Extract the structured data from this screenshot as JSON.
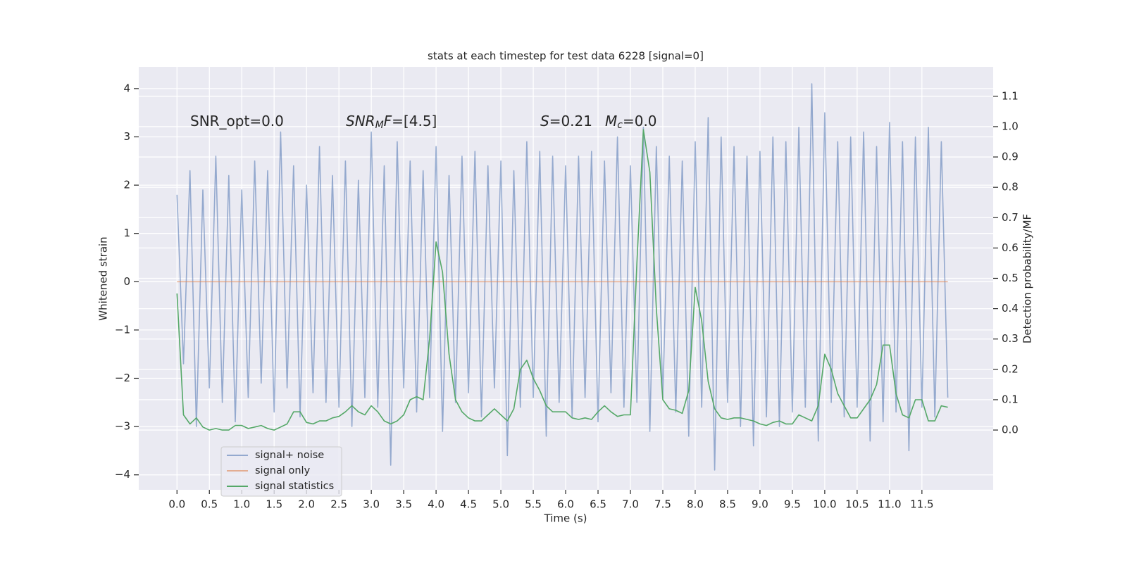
{
  "chart_data": {
    "type": "line",
    "title": "stats at each timestep for test data 6228 [signal=0]",
    "xlabel": "Time (s)",
    "ylabel": "Whitened strain",
    "y2label": "Detection probability/MF",
    "grid": true,
    "legend": "lower left",
    "xlim": [
      -0.59,
      12.6
    ],
    "ylim": [
      -4.31,
      4.45
    ],
    "y2lim": [
      -0.197,
      1.197
    ],
    "xticks": [
      {
        "value": 0,
        "label": "0.0"
      },
      {
        "value": 0.5,
        "label": "0.5"
      },
      {
        "value": 1,
        "label": "1.0"
      },
      {
        "value": 1.5,
        "label": "1.5"
      },
      {
        "value": 2,
        "label": "2.0"
      },
      {
        "value": 2.5,
        "label": "2.5"
      },
      {
        "value": 3,
        "label": "3.0"
      },
      {
        "value": 3.5,
        "label": "3.5"
      },
      {
        "value": 4,
        "label": "4.0"
      },
      {
        "value": 4.5,
        "label": "4.5"
      },
      {
        "value": 5,
        "label": "5.0"
      },
      {
        "value": 5.5,
        "label": "5.5"
      },
      {
        "value": 6,
        "label": "6.0"
      },
      {
        "value": 6.5,
        "label": "6.5"
      },
      {
        "value": 7,
        "label": "7.0"
      },
      {
        "value": 7.5,
        "label": "7.5"
      },
      {
        "value": 8,
        "label": "8.0"
      },
      {
        "value": 8.5,
        "label": "8.5"
      },
      {
        "value": 9,
        "label": "9.0"
      },
      {
        "value": 9.5,
        "label": "9.5"
      },
      {
        "value": 10,
        "label": "10.0"
      },
      {
        "value": 10.5,
        "label": "10.5"
      },
      {
        "value": 11,
        "label": "11.0"
      },
      {
        "value": 11.5,
        "label": "11.5"
      }
    ],
    "yticks": [
      {
        "value": -4,
        "label": "−4"
      },
      {
        "value": -3,
        "label": "−3"
      },
      {
        "value": -2,
        "label": "−2"
      },
      {
        "value": -1,
        "label": "−1"
      },
      0,
      1,
      2,
      3,
      4
    ],
    "y2ticks": [
      {
        "value": 0,
        "label": "0.0"
      },
      {
        "value": 0.1,
        "label": "0.1"
      },
      {
        "value": 0.2,
        "label": "0.2"
      },
      {
        "value": 0.3,
        "label": "0.3"
      },
      {
        "value": 0.4,
        "label": "0.4"
      },
      {
        "value": 0.5,
        "label": "0.5"
      },
      {
        "value": 0.6,
        "label": "0.6"
      },
      {
        "value": 0.7,
        "label": "0.7"
      },
      {
        "value": 0.8,
        "label": "0.8"
      },
      {
        "value": 0.9,
        "label": "0.9"
      },
      {
        "value": 1,
        "label": "1.0"
      },
      {
        "value": 1.1,
        "label": "1.1"
      }
    ],
    "annotations": [
      [
        {
          "t": "SNR_opt=0.0"
        }
      ],
      [
        {
          "t": "SNR",
          "italic": true
        },
        {
          "t": "M",
          "italic": true,
          "sub": true
        },
        {
          "t": "F",
          "italic": true
        },
        {
          "t": "=[4.5]"
        }
      ],
      [
        {
          "t": "S",
          "italic": true
        },
        {
          "t": "=0.21"
        }
      ],
      [
        {
          "t": "M",
          "italic": true
        },
        {
          "t": "c",
          "italic": true,
          "sub": true
        },
        {
          "t": "=0.0"
        }
      ]
    ],
    "x": [
      0.0,
      0.1,
      0.2,
      0.3,
      0.4,
      0.5,
      0.6,
      0.7,
      0.8,
      0.9,
      1.0,
      1.1,
      1.2,
      1.3,
      1.4,
      1.5,
      1.6,
      1.7,
      1.8,
      1.9,
      2.0,
      2.1,
      2.2,
      2.3,
      2.4,
      2.5,
      2.6,
      2.7,
      2.8,
      2.9,
      3.0,
      3.1,
      3.2,
      3.3,
      3.4,
      3.5,
      3.6,
      3.7,
      3.8,
      3.9,
      4.0,
      4.1,
      4.2,
      4.3,
      4.4,
      4.5,
      4.6,
      4.7,
      4.8,
      4.9,
      5.0,
      5.1,
      5.2,
      5.3,
      5.4,
      5.5,
      5.6,
      5.7,
      5.8,
      5.9,
      6.0,
      6.1,
      6.2,
      6.3,
      6.4,
      6.5,
      6.6,
      6.7,
      6.8,
      6.9,
      7.0,
      7.1,
      7.2,
      7.3,
      7.4,
      7.5,
      7.6,
      7.7,
      7.8,
      7.9,
      8.0,
      8.1,
      8.2,
      8.3,
      8.4,
      8.5,
      8.6,
      8.7,
      8.8,
      8.9,
      9.0,
      9.1,
      9.2,
      9.3,
      9.4,
      9.5,
      9.6,
      9.7,
      9.8,
      9.9,
      10.0,
      10.1,
      10.2,
      10.3,
      10.4,
      10.5,
      10.6,
      10.7,
      10.8,
      10.9,
      11.0,
      11.1,
      11.2,
      11.3,
      11.4,
      11.5,
      11.6,
      11.7,
      11.8,
      11.9
    ],
    "series": [
      {
        "name": "signal+ noise",
        "color": "#4c72b0",
        "opacity": 0.55,
        "values": [
          1.8,
          -1.7,
          2.3,
          -3.0,
          1.9,
          -2.2,
          2.6,
          -2.5,
          2.2,
          -2.9,
          1.9,
          -2.4,
          2.5,
          -2.1,
          2.3,
          -2.7,
          3.1,
          -2.2,
          2.4,
          -2.8,
          2.0,
          -2.3,
          2.8,
          -2.5,
          2.2,
          -2.6,
          2.5,
          -3.0,
          2.1,
          -2.4,
          3.1,
          -2.6,
          2.4,
          -3.8,
          2.9,
          -2.2,
          2.5,
          -2.7,
          2.3,
          -2.4,
          2.8,
          -3.1,
          2.2,
          -2.5,
          2.6,
          -2.3,
          2.7,
          -2.8,
          2.4,
          -2.2,
          2.5,
          -3.6,
          2.3,
          -2.6,
          2.9,
          -2.4,
          2.7,
          -3.2,
          2.6,
          -2.5,
          2.4,
          -2.8,
          2.6,
          -2.4,
          2.7,
          -2.9,
          2.5,
          -2.3,
          3.0,
          -2.6,
          2.4,
          -2.5,
          3.2,
          -3.1,
          2.8,
          -2.4,
          2.6,
          -2.7,
          2.5,
          -3.2,
          2.9,
          -2.6,
          3.4,
          -3.9,
          3.0,
          -2.5,
          2.8,
          -3.0,
          2.6,
          -3.4,
          2.7,
          -2.8,
          3.0,
          -3.0,
          2.9,
          -2.7,
          3.2,
          -2.6,
          4.1,
          -3.3,
          3.5,
          -2.5,
          2.9,
          -2.8,
          3.0,
          -2.6,
          3.1,
          -3.3,
          2.8,
          -2.9,
          3.3,
          -2.7,
          2.9,
          -3.5,
          3.0,
          -2.6,
          3.2,
          -2.8,
          2.9,
          -2.4
        ]
      },
      {
        "name": "signal only",
        "color": "#dd8452",
        "opacity": 0.6,
        "values": [
          0,
          0,
          0,
          0,
          0,
          0,
          0,
          0,
          0,
          0,
          0,
          0,
          0,
          0,
          0,
          0,
          0,
          0,
          0,
          0,
          0,
          0,
          0,
          0,
          0,
          0,
          0,
          0,
          0,
          0,
          0,
          0,
          0,
          0,
          0,
          0,
          0,
          0,
          0,
          0,
          0,
          0,
          0,
          0,
          0,
          0,
          0,
          0,
          0,
          0,
          0,
          0,
          0,
          0,
          0,
          0,
          0,
          0,
          0,
          0,
          0,
          0,
          0,
          0,
          0,
          0,
          0,
          0,
          0,
          0,
          0,
          0,
          0,
          0,
          0,
          0,
          0,
          0,
          0,
          0,
          0,
          0,
          0,
          0,
          0,
          0,
          0,
          0,
          0,
          0,
          0,
          0,
          0,
          0,
          0,
          0,
          0,
          0,
          0,
          0,
          0,
          0,
          0,
          0,
          0,
          0,
          0,
          0,
          0,
          0,
          0,
          0,
          0,
          0,
          0,
          0,
          0,
          0,
          0,
          0
        ]
      },
      {
        "name": "signal statistics",
        "color": "#55a868",
        "opacity": 1,
        "axis": "y2",
        "values": [
          0.45,
          0.05,
          0.02,
          0.04,
          0.01,
          0.0,
          0.005,
          0.0,
          0.0,
          0.015,
          0.015,
          0.005,
          0.01,
          0.015,
          0.005,
          0.0,
          0.01,
          0.02,
          0.06,
          0.06,
          0.025,
          0.02,
          0.03,
          0.03,
          0.04,
          0.045,
          0.06,
          0.08,
          0.06,
          0.05,
          0.08,
          0.06,
          0.03,
          0.02,
          0.03,
          0.05,
          0.1,
          0.11,
          0.1,
          0.3,
          0.62,
          0.52,
          0.25,
          0.1,
          0.06,
          0.04,
          0.03,
          0.03,
          0.05,
          0.07,
          0.05,
          0.03,
          0.07,
          0.2,
          0.23,
          0.17,
          0.13,
          0.08,
          0.06,
          0.06,
          0.06,
          0.04,
          0.035,
          0.04,
          0.035,
          0.06,
          0.08,
          0.06,
          0.045,
          0.05,
          0.05,
          0.55,
          0.99,
          0.85,
          0.4,
          0.1,
          0.07,
          0.065,
          0.055,
          0.13,
          0.47,
          0.36,
          0.16,
          0.07,
          0.04,
          0.035,
          0.04,
          0.04,
          0.035,
          0.03,
          0.02,
          0.015,
          0.025,
          0.03,
          0.02,
          0.02,
          0.05,
          0.04,
          0.03,
          0.08,
          0.25,
          0.2,
          0.12,
          0.08,
          0.04,
          0.04,
          0.07,
          0.1,
          0.15,
          0.28,
          0.28,
          0.12,
          0.05,
          0.04,
          0.1,
          0.1,
          0.03,
          0.03,
          0.08,
          0.075
        ]
      }
    ]
  }
}
